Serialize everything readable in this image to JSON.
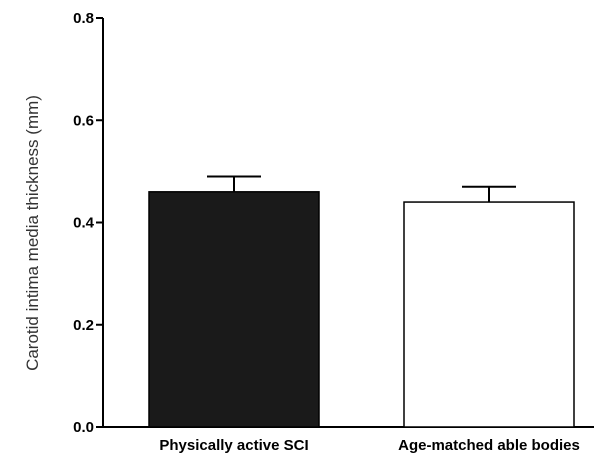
{
  "chart_data": {
    "type": "bar",
    "categories": [
      "Physically active SCI",
      "Age-matched able bodies"
    ],
    "values": [
      0.46,
      0.44
    ],
    "errors": [
      0.03,
      0.03
    ],
    "bar_colors": [
      "#1a1a1a",
      "#ffffff"
    ],
    "title": "",
    "xlabel": "",
    "ylabel": "Carotid intima media thickness (mm)",
    "ylim": [
      0,
      0.8
    ],
    "yticks": [
      {
        "value": 0.0,
        "label": "0.0"
      },
      {
        "value": 0.2,
        "label": "0.2"
      },
      {
        "value": 0.4,
        "label": "0.4"
      },
      {
        "value": 0.6,
        "label": "0.6"
      },
      {
        "value": 0.8,
        "label": "0.8"
      }
    ],
    "grid": false
  }
}
